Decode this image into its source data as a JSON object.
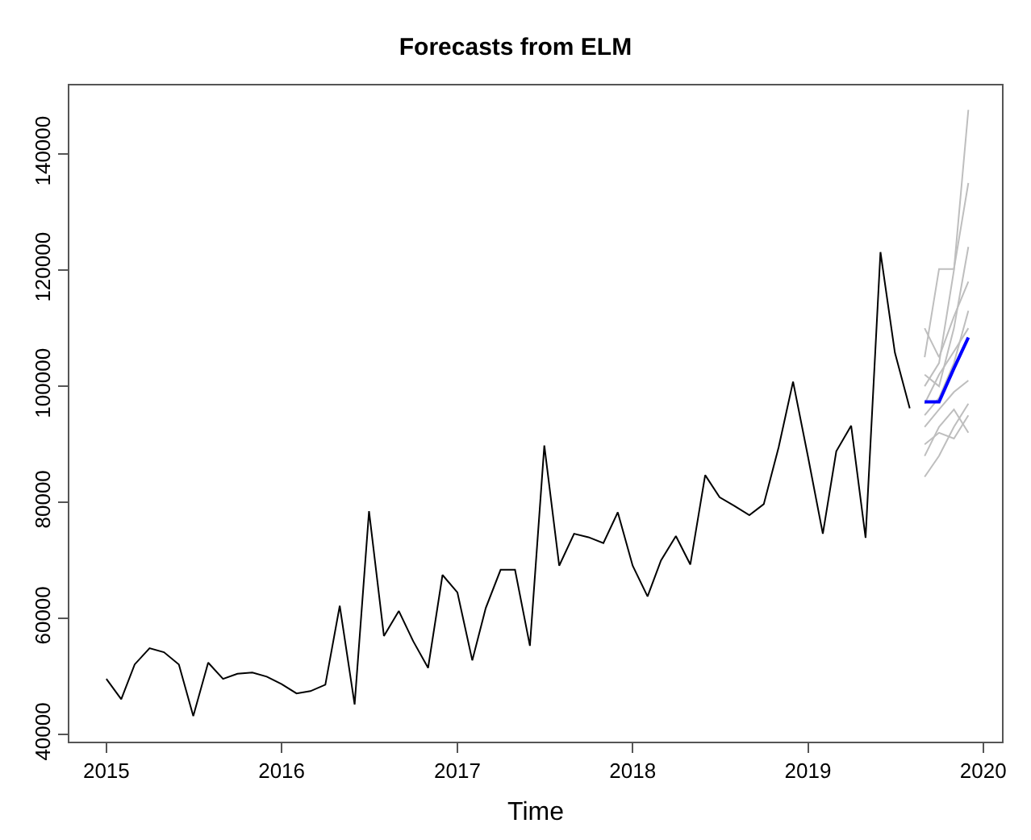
{
  "chart_data": {
    "type": "line",
    "title": "Forecasts from ELM",
    "xlabel": "Time",
    "xlim": [
      "2014-10-16",
      "2020-02-09"
    ],
    "xticks": [
      "2015",
      "2016",
      "2017",
      "2018",
      "2019",
      "2020"
    ],
    "ylim": [
      38800,
      151800
    ],
    "yticks": [
      40000,
      60000,
      80000,
      100000,
      120000,
      140000
    ],
    "marker": "none",
    "line_style": "solid",
    "series": [
      {
        "color": "#bebebe",
        "x": [
          "2019-09",
          "2019-10",
          "2019-11",
          "2019-12"
        ],
        "values": [
          100000,
          104000,
          120000,
          147600
        ]
      },
      {
        "color": "#bebebe",
        "x": [
          "2019-09",
          "2019-10",
          "2019-11",
          "2019-12"
        ],
        "values": [
          105000,
          120200,
          120200,
          135000
        ]
      },
      {
        "color": "#bebebe",
        "x": [
          "2019-09",
          "2019-10",
          "2019-11",
          "2019-12"
        ],
        "values": [
          84400,
          88000,
          93000,
          97000
        ]
      },
      {
        "color": "#bebebe",
        "x": [
          "2019-09",
          "2019-10",
          "2019-11",
          "2019-12"
        ],
        "values": [
          90000,
          92000,
          91000,
          95000
        ]
      },
      {
        "color": "#bebebe",
        "x": [
          "2019-09",
          "2019-10",
          "2019-11",
          "2019-12"
        ],
        "values": [
          95000,
          98000,
          104000,
          113000
        ]
      },
      {
        "color": "#bebebe",
        "x": [
          "2019-09",
          "2019-10",
          "2019-11",
          "2019-12"
        ],
        "values": [
          102000,
          100000,
          110000,
          124000
        ]
      },
      {
        "color": "#bebebe",
        "x": [
          "2019-09",
          "2019-10",
          "2019-11",
          "2019-12"
        ],
        "values": [
          93000,
          96000,
          99000,
          101000
        ]
      },
      {
        "color": "#bebebe",
        "x": [
          "2019-09",
          "2019-10",
          "2019-11",
          "2019-12"
        ],
        "values": [
          110000,
          105000,
          112000,
          118000
        ]
      },
      {
        "color": "#bebebe",
        "x": [
          "2019-09",
          "2019-10",
          "2019-11",
          "2019-12"
        ],
        "values": [
          88000,
          93000,
          96000,
          92000
        ]
      },
      {
        "color": "#bebebe",
        "x": [
          "2019-09",
          "2019-10",
          "2019-11",
          "2019-12"
        ],
        "values": [
          97000,
          102000,
          106000,
          110000
        ]
      },
      {
        "color": "#000000",
        "x": [
          "2015-01",
          "2015-02",
          "2015-03",
          "2015-04",
          "2015-05",
          "2015-06",
          "2015-07",
          "2015-08",
          "2015-09",
          "2015-10",
          "2015-11",
          "2015-12",
          "2016-01",
          "2016-02",
          "2016-03",
          "2016-04",
          "2016-05",
          "2016-06",
          "2016-07",
          "2016-08",
          "2016-09",
          "2016-10",
          "2016-11",
          "2016-12",
          "2017-01",
          "2017-02",
          "2017-03",
          "2017-04",
          "2017-05",
          "2017-06",
          "2017-07",
          "2017-08",
          "2017-09",
          "2017-10",
          "2017-11",
          "2017-12",
          "2018-01",
          "2018-02",
          "2018-03",
          "2018-04",
          "2018-05",
          "2018-06",
          "2018-07",
          "2018-08",
          "2018-09",
          "2018-10",
          "2018-11",
          "2018-12",
          "2019-01",
          "2019-02",
          "2019-03",
          "2019-04",
          "2019-05",
          "2019-06",
          "2019-07",
          "2019-08"
        ],
        "values": [
          49600,
          46100,
          52100,
          54900,
          54200,
          52100,
          43200,
          52400,
          49600,
          50500,
          50700,
          50000,
          48700,
          47100,
          47500,
          48600,
          62200,
          45200,
          78500,
          57000,
          61300,
          56100,
          51500,
          67500,
          64500,
          52800,
          61800,
          68400,
          68400,
          55300,
          89800,
          69100,
          74600,
          74000,
          73000,
          78300,
          69100,
          63800,
          70000,
          74200,
          69300,
          84700,
          80900,
          79400,
          77800,
          79700,
          89500,
          100800,
          87900,
          74600,
          88800,
          93200,
          73900,
          123100,
          105800,
          96200
        ]
      },
      {
        "color": "#0000ff",
        "x": [
          "2019-09",
          "2019-10",
          "2019-11",
          "2019-12"
        ],
        "values": [
          97300,
          97300,
          103100,
          108400
        ]
      }
    ]
  }
}
